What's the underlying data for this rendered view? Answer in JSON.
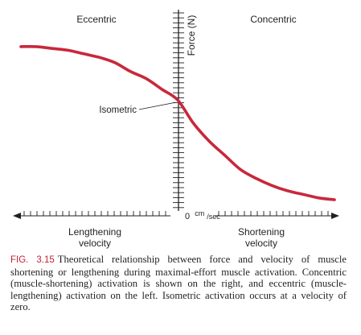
{
  "chart_data": {
    "type": "line",
    "title": "",
    "xlabel": "",
    "ylabel": "Force (N)",
    "origin_label": "0",
    "origin_unit_sup": "cm",
    "origin_unit_sub": "/sec",
    "region_labels": {
      "left": "Eccentric",
      "right": "Concentric"
    },
    "direction_labels": {
      "left": [
        "Lengthening",
        "velocity"
      ],
      "right": [
        "Shortening",
        "velocity"
      ]
    },
    "annotations": [
      {
        "text": "Isometric",
        "x": 0,
        "y": 0.56
      }
    ],
    "xlim": [
      -1,
      1
    ],
    "ylim": [
      0,
      1
    ],
    "grid": false,
    "legend": "none",
    "series": [
      {
        "color": "#c8283c",
        "x": [
          -1.0,
          -0.9,
          -0.8,
          -0.7,
          -0.6,
          -0.5,
          -0.4,
          -0.3,
          -0.2,
          -0.1,
          0.0,
          0.1,
          0.2,
          0.3,
          0.4,
          0.5,
          0.6,
          0.7,
          0.8,
          0.9,
          1.0
        ],
        "y": [
          0.86,
          0.86,
          0.85,
          0.84,
          0.82,
          0.8,
          0.77,
          0.72,
          0.68,
          0.62,
          0.56,
          0.43,
          0.33,
          0.25,
          0.17,
          0.12,
          0.08,
          0.05,
          0.03,
          0.01,
          0.0
        ]
      }
    ]
  },
  "caption": {
    "figure_number": "FIG. 3.15",
    "text": "Theoretical relationship between force and velocity of muscle shortening or lengthening during maximal-effort muscle activation. Concentric (muscle-shortening) activation is shown on the right, and eccentric (muscle-lengthening) activation on the left. Isometric activation occurs at a velocity of zero."
  },
  "colors": {
    "curve": "#c8283c",
    "axis": "#231f20",
    "figure_number": "#c41e3a"
  }
}
